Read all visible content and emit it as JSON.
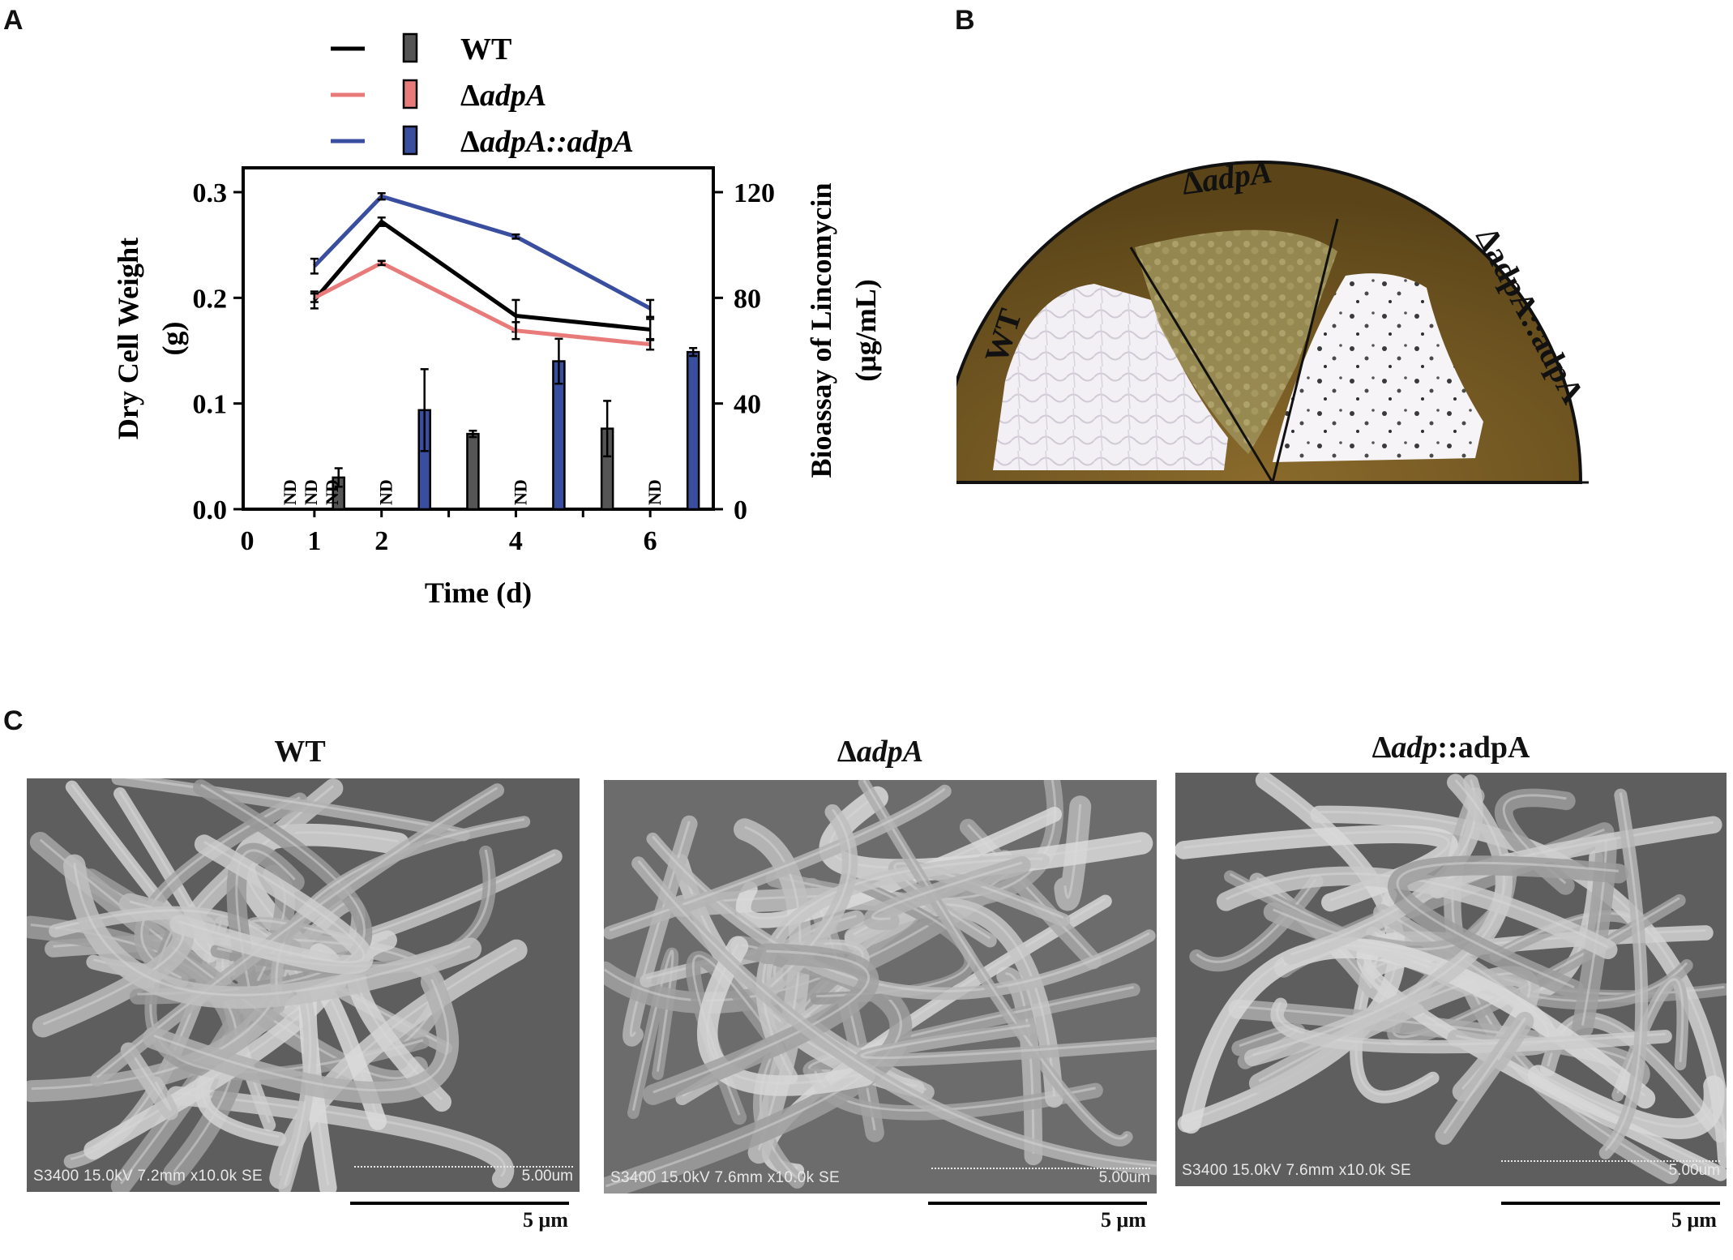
{
  "panels": {
    "a": "A",
    "b": "B",
    "c": "C"
  },
  "chart_data": {
    "type": "line+bar",
    "x_ticks": [
      "0",
      "1",
      "2",
      "4",
      "6"
    ],
    "x_values": [
      0,
      1,
      2,
      4,
      6
    ],
    "xlabel": "Time (d)",
    "ylabel_left": "Dry Cell Weight",
    "ylabel_left_unit": "(g)",
    "ylabel_right": "Bioassay of Lincomycin",
    "ylabel_right_unit": "(μg/mL)",
    "ylim_left": [
      0,
      0.3
    ],
    "ylim_right": [
      0,
      120
    ],
    "yticks_left": [
      "0.0",
      "0.1",
      "0.2",
      "0.3"
    ],
    "yticks_right": [
      "0",
      "40",
      "80",
      "120"
    ],
    "legend": [
      {
        "name": "WT",
        "name_prefix": "",
        "name_italic": "",
        "name_suffix": "WT",
        "line_color": "#000000",
        "bar_color": "#555555"
      },
      {
        "name": "ΔadpA",
        "name_prefix": "Δ",
        "name_italic": "adpA",
        "name_suffix": "",
        "line_color": "#e87a7a",
        "bar_color": "#e87a7a"
      },
      {
        "name": "ΔadpA::adpA",
        "name_prefix": "Δ",
        "name_italic": "adpA",
        "name_suffix": "::adpA",
        "line_color": "#3a4ea0",
        "bar_color": "#3a4ea0"
      }
    ],
    "line_series": [
      {
        "name": "WT",
        "x": [
          1,
          2,
          4,
          6
        ],
        "y": [
          0.198,
          0.272,
          0.183,
          0.17
        ],
        "err": [
          0.008,
          0.004,
          0.015,
          0.01
        ]
      },
      {
        "name": "ΔadpA",
        "x": [
          1,
          2,
          4,
          6
        ],
        "y": [
          0.2,
          0.233,
          0.169,
          0.156
        ],
        "err": [
          0.004,
          0.002,
          0.008,
          0.005
        ]
      },
      {
        "name": "ΔadpA::adpA",
        "x": [
          1,
          2,
          4,
          6
        ],
        "y": [
          0.23,
          0.296,
          0.258,
          0.19
        ],
        "err": [
          0.007,
          0.003,
          0.002,
          0.008
        ]
      }
    ],
    "bar_series": [
      {
        "name": "WT",
        "x": [
          1,
          2,
          4,
          6
        ],
        "y": [
          0,
          12,
          28.5,
          30.5
        ],
        "err": [
          0,
          3.5,
          1.2,
          10.5
        ],
        "nd": [
          true,
          false,
          false,
          false
        ]
      },
      {
        "name": "ΔadpA",
        "x": [
          1,
          2,
          4,
          6
        ],
        "y": [
          0,
          0,
          0,
          0
        ],
        "err": [
          0,
          0,
          0,
          0
        ],
        "nd": [
          true,
          true,
          true,
          true
        ]
      },
      {
        "name": "ΔadpA::adpA",
        "x": [
          1,
          2,
          4,
          6
        ],
        "y": [
          0,
          37.5,
          56,
          59.5
        ],
        "err": [
          0,
          15.5,
          8.5,
          1.5
        ],
        "nd": [
          true,
          false,
          false,
          false
        ]
      }
    ],
    "nd_label": "ND"
  },
  "plate": {
    "labels": [
      {
        "prefix": "",
        "italic": "",
        "suffix": "WT"
      },
      {
        "prefix": "Δ",
        "italic": "adpA",
        "suffix": ""
      },
      {
        "prefix": "ΔadpA::adpA",
        "italic": "",
        "suffix": ""
      }
    ]
  },
  "sem": [
    {
      "title_prefix": "",
      "title_italic": "",
      "title_suffix": "WT",
      "info": "S3400 15.0kV 7.2mm x10.0k SE",
      "scale": "5.00um",
      "bar_label": "5 μm"
    },
    {
      "title_prefix": "Δ",
      "title_italic": "adpA",
      "title_suffix": "",
      "info": "S3400 15.0kV 7.6mm x10.0k SE",
      "scale": "5.00um",
      "bar_label": "5 μm"
    },
    {
      "title_prefix": "Δ",
      "title_italic": "adp",
      "title_suffix": "::adpA",
      "info": "S3400 15.0kV 7.6mm x10.0k SE",
      "scale": "5.00um",
      "bar_label": "5 μm"
    }
  ]
}
